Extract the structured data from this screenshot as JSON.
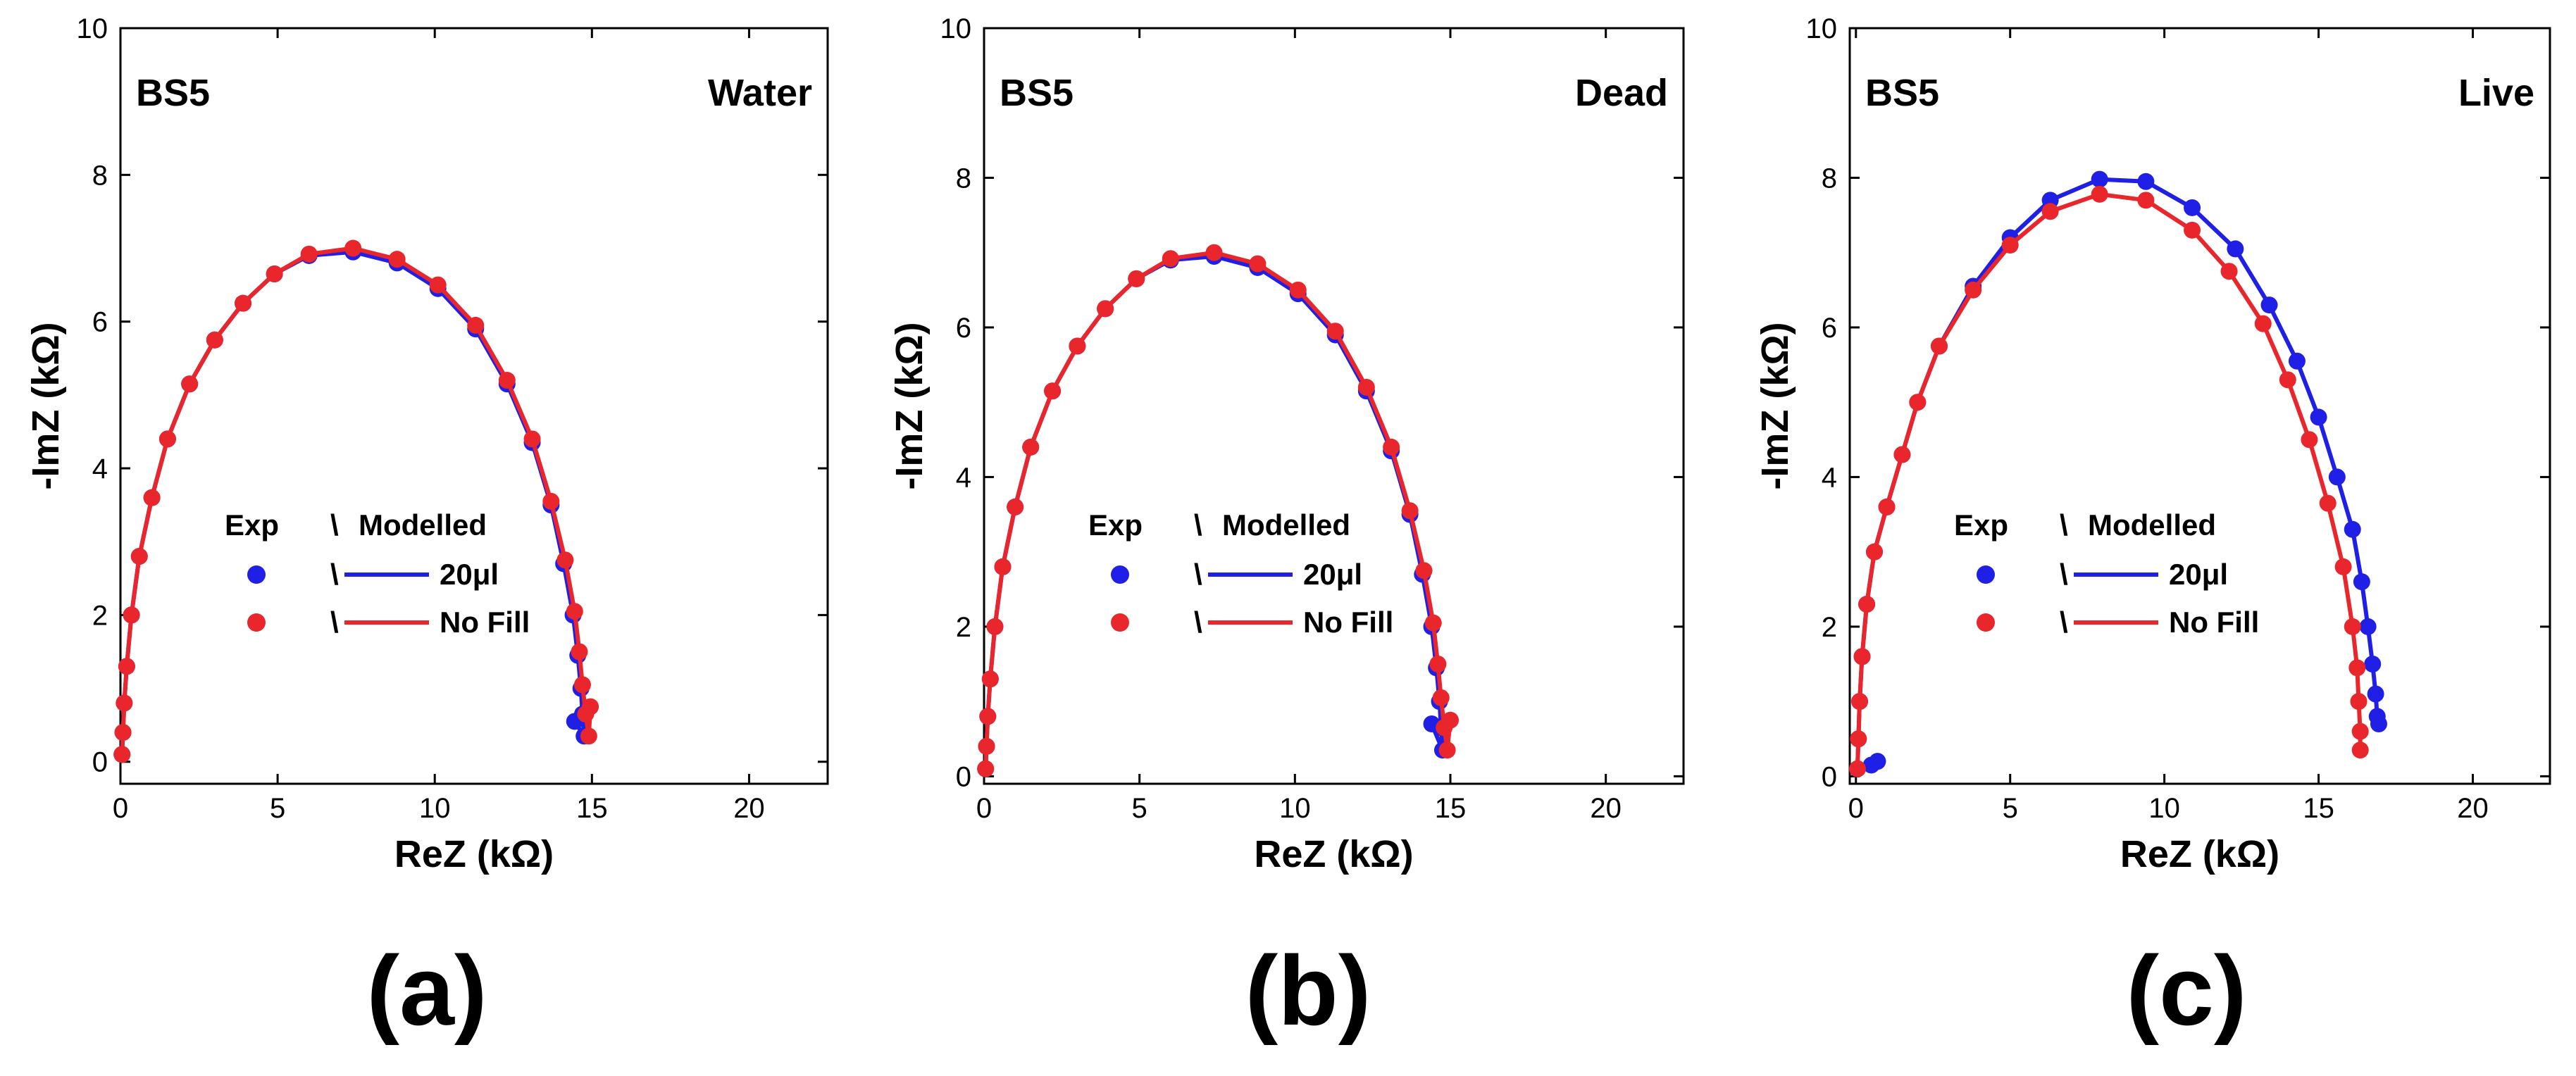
{
  "colors": {
    "series_20ul": "#1f1fe6",
    "series_nofill": "#e8262b",
    "frame": "#000000"
  },
  "chart_data": [
    {
      "type": "scatter",
      "panel_label": "(a)",
      "sample": "BS5",
      "condition": "Water",
      "xlabel": "ReZ (kΩ)",
      "ylabel": "-ImZ (kΩ)",
      "xlim": [
        0,
        22.5
      ],
      "ylim": [
        -0.3,
        10
      ],
      "xticks": [
        0,
        5,
        10,
        15,
        20
      ],
      "yticks": [
        0,
        2,
        4,
        6,
        8,
        10
      ],
      "legend": {
        "header_exp": "Exp",
        "header_sep": "\\",
        "header_model": "Modelled",
        "entries": [
          {
            "sep": "\\",
            "label": "20μl"
          },
          {
            "sep": "\\",
            "label": "No Fill"
          }
        ]
      },
      "series": [
        {
          "name": "20μl",
          "color_key": "series_20ul",
          "x": [
            0.05,
            0.08,
            0.12,
            0.2,
            0.35,
            0.6,
            1.0,
            1.5,
            2.2,
            3.0,
            3.9,
            4.9,
            6.0,
            7.4,
            8.8,
            10.1,
            11.3,
            12.3,
            13.1,
            13.7,
            14.1,
            14.4,
            14.55,
            14.65,
            14.7,
            14.75,
            14.45
          ],
          "y": [
            0.1,
            0.4,
            0.8,
            1.3,
            2.0,
            2.8,
            3.6,
            4.4,
            5.15,
            5.75,
            6.25,
            6.65,
            6.9,
            6.95,
            6.8,
            6.45,
            5.9,
            5.15,
            4.35,
            3.5,
            2.7,
            2.0,
            1.45,
            1.0,
            0.65,
            0.35,
            0.55
          ]
        },
        {
          "name": "No Fill",
          "color_key": "series_nofill",
          "x": [
            0.05,
            0.08,
            0.12,
            0.2,
            0.35,
            0.6,
            1.0,
            1.5,
            2.2,
            3.0,
            3.9,
            4.9,
            6.0,
            7.4,
            8.8,
            10.1,
            11.3,
            12.3,
            13.1,
            13.7,
            14.15,
            14.45,
            14.6,
            14.7,
            14.8,
            14.9,
            14.95
          ],
          "y": [
            0.1,
            0.4,
            0.8,
            1.3,
            2.0,
            2.8,
            3.6,
            4.4,
            5.15,
            5.75,
            6.25,
            6.65,
            6.92,
            7.0,
            6.85,
            6.5,
            5.95,
            5.2,
            4.4,
            3.55,
            2.75,
            2.05,
            1.5,
            1.05,
            0.65,
            0.35,
            0.75
          ]
        }
      ]
    },
    {
      "type": "scatter",
      "panel_label": "(b)",
      "sample": "BS5",
      "condition": "Dead",
      "xlabel": "ReZ (kΩ)",
      "ylabel": "-ImZ (kΩ)",
      "xlim": [
        0,
        22.5
      ],
      "ylim": [
        -0.1,
        10
      ],
      "xticks": [
        0,
        5,
        10,
        15,
        20
      ],
      "yticks": [
        0,
        2,
        4,
        6,
        8,
        10
      ],
      "legend": {
        "header_exp": "Exp",
        "header_sep": "\\",
        "header_model": "Modelled",
        "entries": [
          {
            "sep": "\\",
            "label": "20μl"
          },
          {
            "sep": "\\",
            "label": "No Fill"
          }
        ]
      },
      "series": [
        {
          "name": "20μl",
          "color_key": "series_20ul",
          "x": [
            0.05,
            0.08,
            0.12,
            0.2,
            0.35,
            0.6,
            1.0,
            1.5,
            2.2,
            3.0,
            3.9,
            4.9,
            6.0,
            7.4,
            8.8,
            10.1,
            11.3,
            12.3,
            13.1,
            13.7,
            14.1,
            14.4,
            14.55,
            14.65,
            14.7,
            14.75,
            14.4
          ],
          "y": [
            0.1,
            0.4,
            0.8,
            1.3,
            2.0,
            2.8,
            3.6,
            4.4,
            5.15,
            5.75,
            6.25,
            6.65,
            6.9,
            6.95,
            6.8,
            6.45,
            5.9,
            5.15,
            4.35,
            3.5,
            2.7,
            2.0,
            1.45,
            1.0,
            0.65,
            0.35,
            0.7
          ]
        },
        {
          "name": "No Fill",
          "color_key": "series_nofill",
          "x": [
            0.05,
            0.08,
            0.12,
            0.2,
            0.35,
            0.6,
            1.0,
            1.5,
            2.2,
            3.0,
            3.9,
            4.9,
            6.0,
            7.4,
            8.8,
            10.1,
            11.3,
            12.3,
            13.1,
            13.7,
            14.15,
            14.45,
            14.6,
            14.7,
            14.8,
            14.9,
            15.0
          ],
          "y": [
            0.1,
            0.4,
            0.8,
            1.3,
            2.0,
            2.8,
            3.6,
            4.4,
            5.15,
            5.75,
            6.25,
            6.65,
            6.92,
            7.0,
            6.85,
            6.5,
            5.95,
            5.2,
            4.4,
            3.55,
            2.75,
            2.05,
            1.5,
            1.05,
            0.65,
            0.35,
            0.75
          ]
        }
      ]
    },
    {
      "type": "scatter",
      "panel_label": "(c)",
      "sample": "BS5",
      "condition": "Live",
      "xlabel": "ReZ (kΩ)",
      "ylabel": "-ImZ (kΩ)",
      "xlim": [
        -0.2,
        22.5
      ],
      "ylim": [
        -0.1,
        10
      ],
      "xticks": [
        0,
        5,
        10,
        15,
        20
      ],
      "yticks": [
        0,
        2,
        4,
        6,
        8,
        10
      ],
      "legend": {
        "header_exp": "Exp",
        "header_sep": "\\",
        "header_model": "Modelled",
        "entries": [
          {
            "sep": "\\",
            "label": "20μl"
          },
          {
            "sep": "\\",
            "label": "No Fill"
          }
        ]
      },
      "series": [
        {
          "name": "20μl",
          "color_key": "series_20ul",
          "x": [
            0.5,
            0.7,
            0.05,
            0.08,
            0.12,
            0.2,
            0.35,
            0.6,
            1.0,
            1.5,
            2.0,
            2.7,
            3.8,
            5.0,
            6.3,
            7.9,
            9.4,
            10.9,
            12.3,
            13.4,
            14.3,
            15.0,
            15.6,
            16.1,
            16.4,
            16.6,
            16.75,
            16.85,
            16.9,
            16.95
          ],
          "y": [
            0.15,
            0.2,
            0.1,
            0.5,
            1.0,
            1.6,
            2.3,
            3.0,
            3.6,
            4.3,
            5.0,
            5.75,
            6.55,
            7.2,
            7.7,
            7.98,
            7.95,
            7.6,
            7.05,
            6.3,
            5.55,
            4.8,
            4.0,
            3.3,
            2.6,
            2.0,
            1.5,
            1.1,
            0.8,
            0.7
          ]
        },
        {
          "name": "No Fill",
          "color_key": "series_nofill",
          "x": [
            0.05,
            0.08,
            0.12,
            0.2,
            0.35,
            0.6,
            1.0,
            1.5,
            2.0,
            2.7,
            3.8,
            5.0,
            6.3,
            7.9,
            9.4,
            10.9,
            12.1,
            13.2,
            14.0,
            14.7,
            15.3,
            15.8,
            16.1,
            16.25,
            16.3,
            16.35,
            16.35
          ],
          "y": [
            0.1,
            0.5,
            1.0,
            1.6,
            2.3,
            3.0,
            3.6,
            4.3,
            5.0,
            5.75,
            6.5,
            7.1,
            7.55,
            7.78,
            7.7,
            7.3,
            6.75,
            6.05,
            5.3,
            4.5,
            3.65,
            2.8,
            2.0,
            1.45,
            1.0,
            0.6,
            0.35
          ]
        }
      ]
    }
  ]
}
